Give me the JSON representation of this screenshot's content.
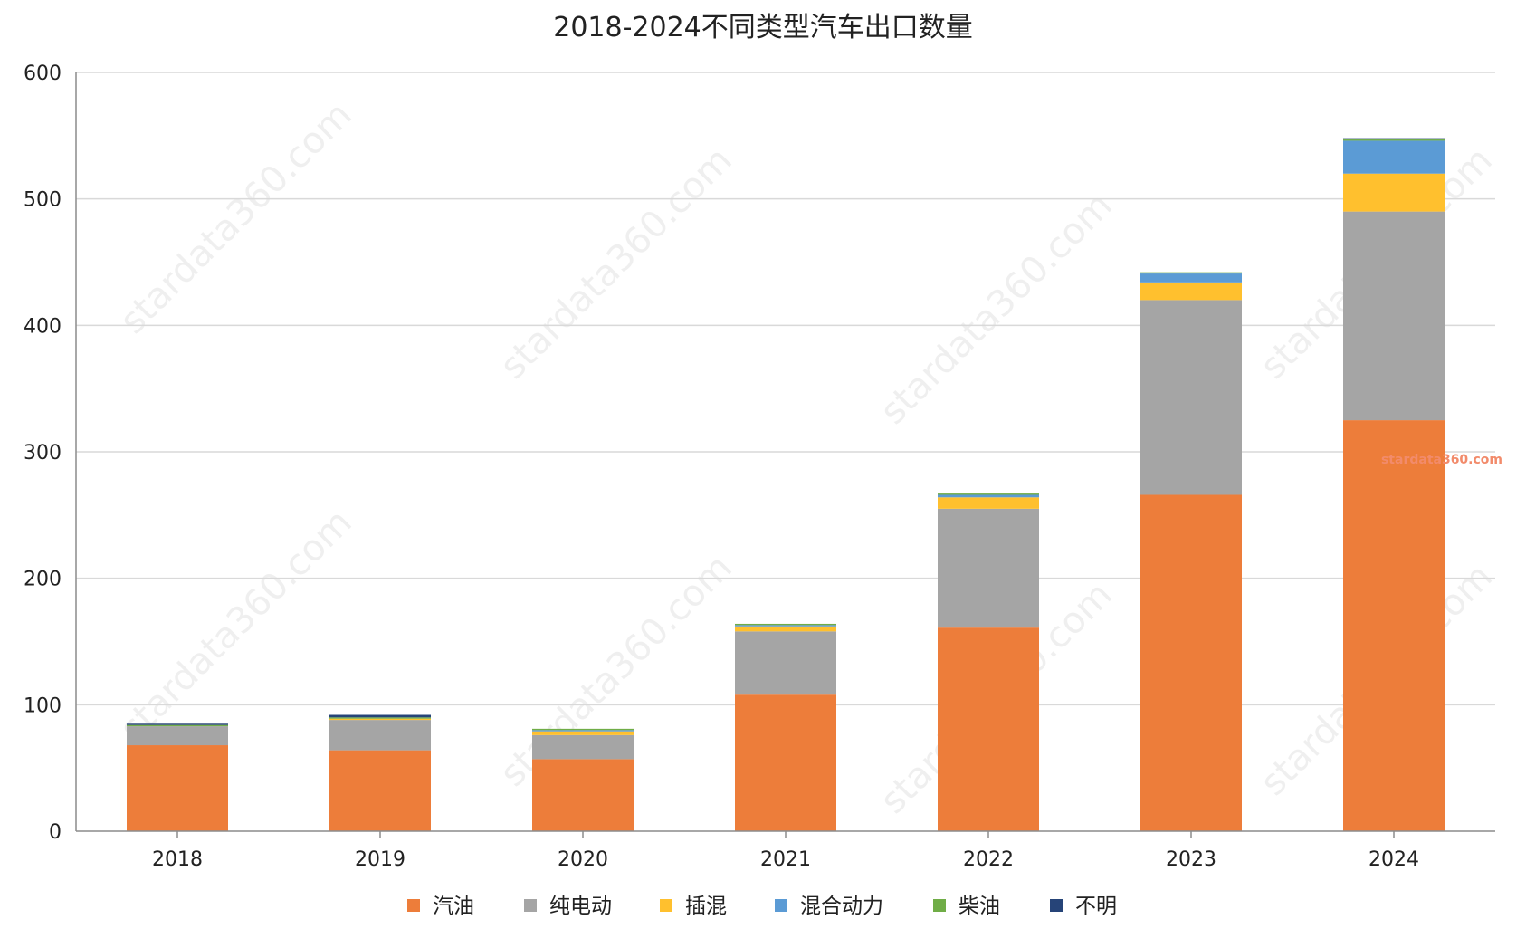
{
  "chart_data": {
    "type": "bar",
    "stacked": true,
    "title": "2018-2024不同类型汽车出口数量",
    "xlabel": "",
    "ylabel": "",
    "ylim": [
      0,
      600
    ],
    "yticks": [
      0,
      100,
      200,
      300,
      400,
      500,
      600
    ],
    "grid": true,
    "legend_position": "bottom",
    "categories": [
      "2018",
      "2019",
      "2020",
      "2021",
      "2022",
      "2023",
      "2024"
    ],
    "series": [
      {
        "name": "汽油",
        "color": "#ED7D3A",
        "values": [
          68,
          64,
          57,
          108,
          161,
          266,
          325
        ]
      },
      {
        "name": "纯电动",
        "color": "#A5A5A5",
        "values": [
          15,
          24,
          19,
          50,
          94,
          154,
          165
        ]
      },
      {
        "name": "插混",
        "color": "#FFC02E",
        "values": [
          0,
          1,
          3,
          4,
          9,
          14,
          30
        ]
      },
      {
        "name": "混合动力",
        "color": "#5B9BD5",
        "values": [
          0,
          0,
          1,
          1,
          2,
          7,
          26
        ]
      },
      {
        "name": "柴油",
        "color": "#70AD47",
        "values": [
          1,
          1,
          1,
          1,
          1,
          1,
          1
        ]
      },
      {
        "name": "不明",
        "color": "#264478",
        "values": [
          1,
          2,
          0,
          0,
          0,
          0,
          1
        ]
      }
    ]
  },
  "watermark": "stardata360.com",
  "brand_label": "stardata360.com"
}
